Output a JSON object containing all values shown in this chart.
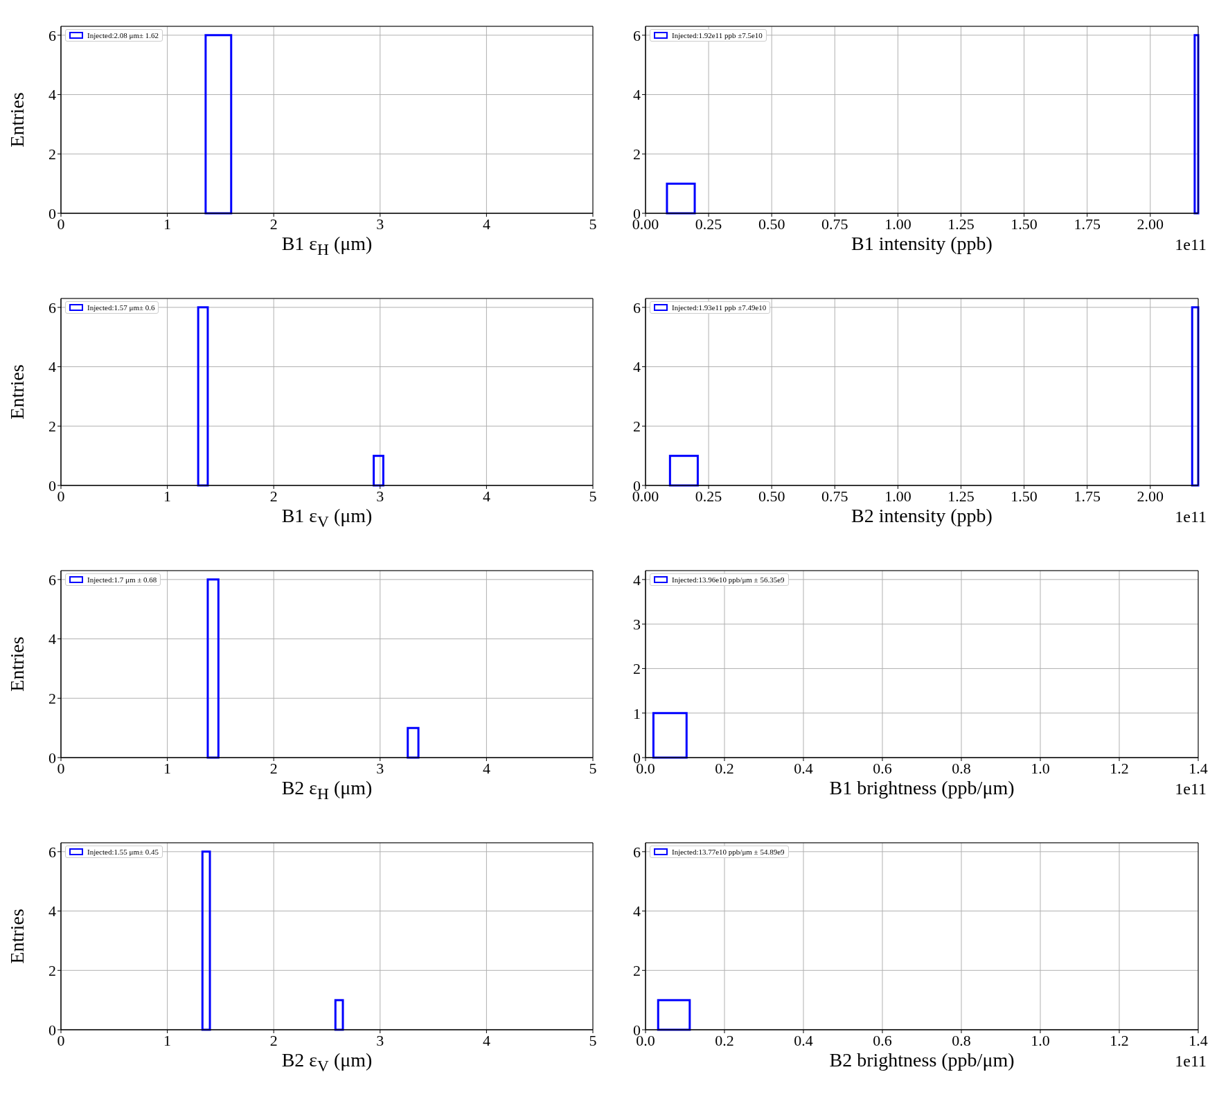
{
  "chart_data": [
    {
      "type": "histogram",
      "xlabel": "B1 ε$_{H}$ (μm)",
      "ylabel": "Entries",
      "bins": [
        1.36,
        1.6
      ],
      "series": [
        {
          "name": "Injected:2.08 μm± 1.62",
          "color": "#0000ff",
          "values": [
            6
          ]
        }
      ],
      "xlim": [
        0,
        5
      ],
      "xticks": [
        0,
        1,
        2,
        3,
        4,
        5
      ],
      "ylim": [
        0,
        6.3
      ],
      "yticks": [
        0,
        2,
        4,
        6
      ],
      "grid": true,
      "legend": "top left"
    },
    {
      "type": "histogram",
      "xlabel": "B1 intensity (ppb)",
      "annotations": [
        "1e11"
      ],
      "bins": [
        0.085,
        0.195,
        2.176,
        2.19
      ],
      "series": [
        {
          "name": "Injected:1.92e11 ppb ±7.5e10",
          "color": "#0000ff",
          "values": [
            1,
            0,
            6
          ]
        }
      ],
      "xlim": [
        0,
        2.19
      ],
      "xticks": [
        {
          "value": 0,
          "label": "0.00"
        },
        0.25,
        {
          "value": 0.5,
          "label": "0.50"
        },
        0.75,
        {
          "value": 1,
          "label": "1.00"
        },
        1.25,
        {
          "value": 1.5,
          "label": "1.50"
        },
        1.75,
        {
          "value": 2,
          "label": "2.00"
        }
      ],
      "ylim": [
        0,
        6.3
      ],
      "yticks": [
        0,
        2,
        4,
        6
      ],
      "grid": true,
      "legend": "top left"
    },
    {
      "type": "histogram",
      "xlabel": "B1 ε$_{V}$ (μm)",
      "ylabel": "Entries",
      "bins": [
        1.29,
        1.38,
        2.94,
        3.03
      ],
      "series": [
        {
          "name": "Injected:1.57 μm± 0.6",
          "color": "#0000ff",
          "values": [
            6,
            0,
            1
          ]
        }
      ],
      "xlim": [
        0,
        5
      ],
      "xticks": [
        0,
        1,
        2,
        3,
        4,
        5
      ],
      "ylim": [
        0,
        6.3
      ],
      "yticks": [
        0,
        2,
        4,
        6
      ],
      "grid": true,
      "legend": "top left"
    },
    {
      "type": "histogram",
      "xlabel": "B2 intensity (ppb)",
      "annotations": [
        "1e11"
      ],
      "bins": [
        0.097,
        0.207,
        2.166,
        2.19
      ],
      "series": [
        {
          "name": "Injected:1.93e11 ppb ±7.49e10",
          "color": "#0000ff",
          "values": [
            1,
            0,
            6
          ]
        }
      ],
      "xlim": [
        0,
        2.19
      ],
      "xticks": [
        {
          "value": 0,
          "label": "0.00"
        },
        0.25,
        {
          "value": 0.5,
          "label": "0.50"
        },
        0.75,
        {
          "value": 1,
          "label": "1.00"
        },
        1.25,
        {
          "value": 1.5,
          "label": "1.50"
        },
        1.75,
        {
          "value": 2,
          "label": "2.00"
        }
      ],
      "ylim": [
        0,
        6.3
      ],
      "yticks": [
        0,
        2,
        4,
        6
      ],
      "grid": true,
      "legend": "top left"
    },
    {
      "type": "histogram",
      "xlabel": "B2 ε$_{H}$ (μm)",
      "ylabel": "Entries",
      "bins": [
        1.38,
        1.48,
        3.26,
        3.36
      ],
      "series": [
        {
          "name": "Injected:1.7 μm ± 0.68",
          "color": "#0000ff",
          "values": [
            6,
            0,
            1
          ]
        }
      ],
      "xlim": [
        0,
        5
      ],
      "xticks": [
        0,
        1,
        2,
        3,
        4,
        5
      ],
      "ylim": [
        0,
        6.3
      ],
      "yticks": [
        0,
        2,
        4,
        6
      ],
      "grid": true,
      "legend": "top left"
    },
    {
      "type": "histogram",
      "xlabel": "B1 brightness (ppb/μm)",
      "annotations": [
        "1e11"
      ],
      "bins": [
        0.02,
        0.104
      ],
      "series": [
        {
          "name": "Injected:13.96e10 ppb/μm ± 56.35e9",
          "color": "#0000ff",
          "values": [
            1
          ]
        }
      ],
      "xlim": [
        0,
        1.4
      ],
      "xticks": [
        {
          "value": 0,
          "label": "0.0"
        },
        0.2,
        0.4,
        0.6,
        0.8,
        {
          "value": 1,
          "label": "1.0"
        },
        1.2,
        1.4
      ],
      "ylim": [
        0,
        4.2
      ],
      "yticks": [
        0,
        1,
        2,
        3,
        4
      ],
      "grid": true,
      "legend": "top left"
    },
    {
      "type": "histogram",
      "xlabel": "B2 ε$_{V}$ (μm)",
      "ylabel": "Entries",
      "bins": [
        1.33,
        1.4,
        2.58,
        2.65
      ],
      "series": [
        {
          "name": "Injected:1.55 μm± 0.45",
          "color": "#0000ff",
          "values": [
            6,
            0,
            1
          ]
        }
      ],
      "xlim": [
        0,
        5
      ],
      "xticks": [
        0,
        1,
        2,
        3,
        4,
        5
      ],
      "ylim": [
        0,
        6.3
      ],
      "yticks": [
        0,
        2,
        4,
        6
      ],
      "grid": true,
      "legend": "top left"
    },
    {
      "type": "histogram",
      "xlabel": "B2 brightness (ppb/μm)",
      "annotations": [
        "1e11"
      ],
      "bins": [
        0.032,
        0.112
      ],
      "series": [
        {
          "name": "Injected:13.77e10 ppb/μm ± 54.89e9",
          "color": "#0000ff",
          "values": [
            1
          ]
        }
      ],
      "xlim": [
        0,
        1.4
      ],
      "xticks": [
        {
          "value": 0,
          "label": "0.0"
        },
        0.2,
        0.4,
        0.6,
        0.8,
        {
          "value": 1,
          "label": "1.0"
        },
        1.2,
        1.4
      ],
      "ylim": [
        0,
        6.3
      ],
      "yticks": [
        0,
        2,
        4,
        6
      ],
      "grid": true,
      "legend": "top left"
    }
  ]
}
